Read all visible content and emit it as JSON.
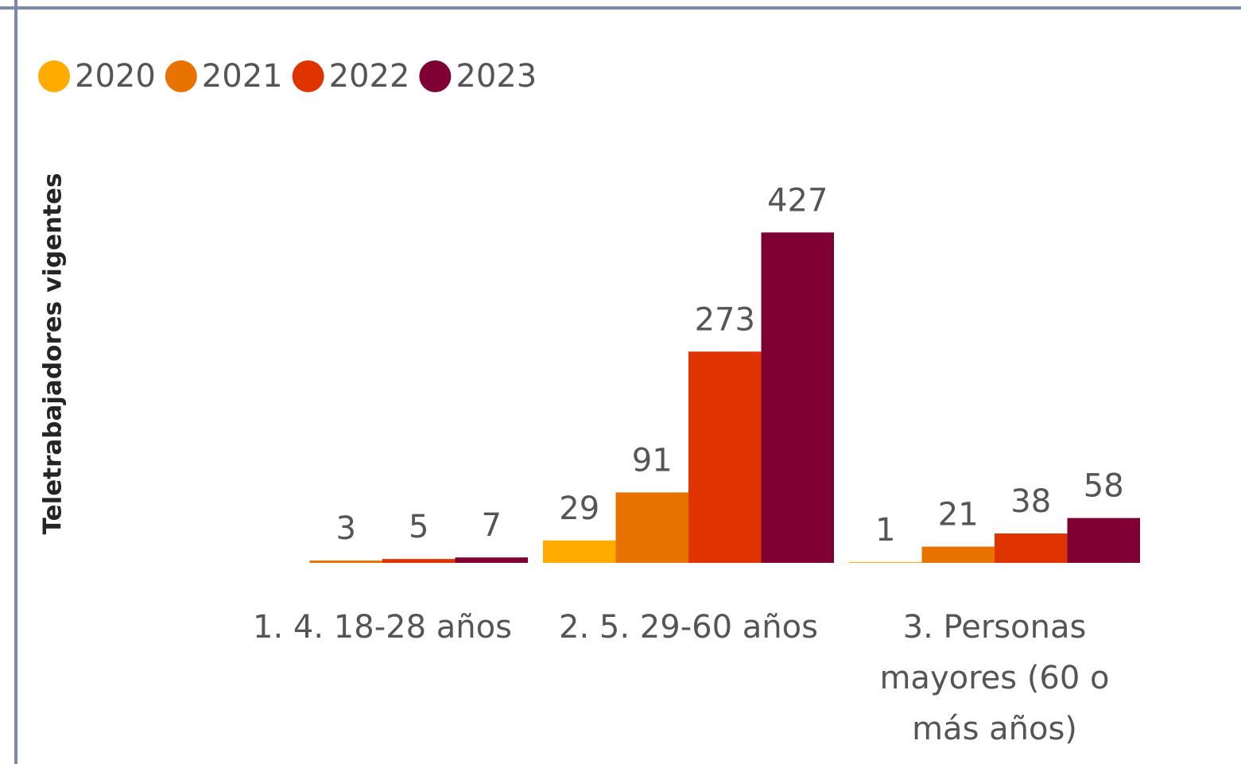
{
  "chart_data": {
    "type": "bar",
    "y_label": "Teletrabajadores vigentes",
    "categories": [
      "1. 4. 18-28 años",
      "2. 5. 29-60 años",
      "3. Personas mayores (60 o más años)"
    ],
    "series": [
      {
        "name": "2020",
        "color": "#FFAB00",
        "values": [
          null,
          29,
          1
        ]
      },
      {
        "name": "2021",
        "color": "#E87200",
        "values": [
          3,
          91,
          21
        ]
      },
      {
        "name": "2022",
        "color": "#E03400",
        "values": [
          5,
          273,
          38
        ]
      },
      {
        "name": "2023",
        "color": "#7F0033",
        "values": [
          7,
          427,
          58
        ]
      }
    ],
    "ylim": [
      0,
      450
    ],
    "legend": "top-left"
  }
}
